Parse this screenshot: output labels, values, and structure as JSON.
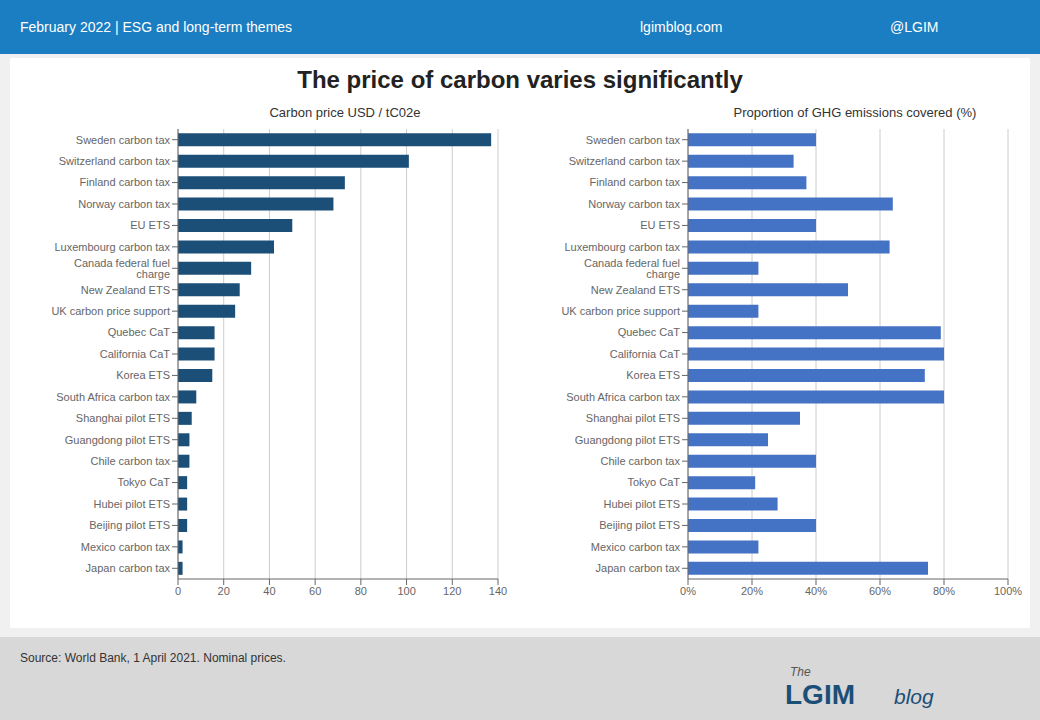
{
  "title": "The price of carbon varies significantly",
  "annotations": [
    "February 2022   |   ESG and long-term themes",
    "lgimblog.com",
    "@LGIM",
    "Source: World Bank, 1 April 2021. Nominal prices.",
    "The",
    "LGIM",
    "blog"
  ],
  "chart_data": [
    {
      "type": "bar",
      "orientation": "horizontal",
      "subtitle": "Carbon price USD / tC02e",
      "categories": [
        "Sweden carbon tax",
        "Switzerland carbon tax",
        "Finland carbon tax",
        "Norway carbon tax",
        "EU ETS",
        "Luxembourg carbon tax",
        "Canada federal fuel charge",
        "New Zealand ETS",
        "UK carbon price support",
        "Quebec CaT",
        "California CaT",
        "Korea ETS",
        "South Africa carbon tax",
        "Shanghai pilot ETS",
        "Guangdong pilot ETS",
        "Chile carbon tax",
        "Tokyo CaT",
        "Hubei pilot ETS",
        "Beijing pilot ETS",
        "Mexico carbon tax",
        "Japan carbon tax"
      ],
      "values": [
        137,
        101,
        73,
        68,
        50,
        42,
        32,
        27,
        25,
        16,
        16,
        15,
        8,
        6,
        5,
        5,
        4,
        4,
        4,
        2,
        2
      ],
      "color": "#1b4f78",
      "xlim": [
        0,
        140
      ],
      "xticks": [
        0,
        20,
        40,
        60,
        80,
        100,
        120,
        140
      ],
      "grid": true
    },
    {
      "type": "bar",
      "orientation": "horizontal",
      "subtitle": "Proportion of GHG emissions  covered (%)",
      "categories": [
        "Sweden carbon tax",
        "Switzerland carbon tax",
        "Finland carbon tax",
        "Norway carbon tax",
        "EU ETS",
        "Luxembourg carbon tax",
        "Canada federal fuel charge",
        "New Zealand ETS",
        "UK carbon price support",
        "Quebec CaT",
        "California CaT",
        "Korea ETS",
        "South Africa carbon tax",
        "Shanghai pilot ETS",
        "Guangdong pilot ETS",
        "Chile carbon tax",
        "Tokyo CaT",
        "Hubei pilot ETS",
        "Beijing pilot ETS",
        "Mexico carbon tax",
        "Japan carbon tax"
      ],
      "values": [
        0.4,
        0.33,
        0.37,
        0.64,
        0.4,
        0.63,
        0.22,
        0.5,
        0.22,
        0.79,
        0.8,
        0.74,
        0.8,
        0.35,
        0.25,
        0.4,
        0.21,
        0.28,
        0.4,
        0.22,
        0.75
      ],
      "color": "#4472c4",
      "xlim": [
        0,
        1.0
      ],
      "xticks": [
        {
          "value": 0,
          "label": "0%"
        },
        {
          "value": 0.2,
          "label": "20%"
        },
        {
          "value": 0.4,
          "label": "40%"
        },
        {
          "value": 0.6,
          "label": "60%"
        },
        {
          "value": 0.8,
          "label": "80%"
        },
        {
          "value": 1.0,
          "label": "100%"
        }
      ],
      "grid": true
    }
  ]
}
